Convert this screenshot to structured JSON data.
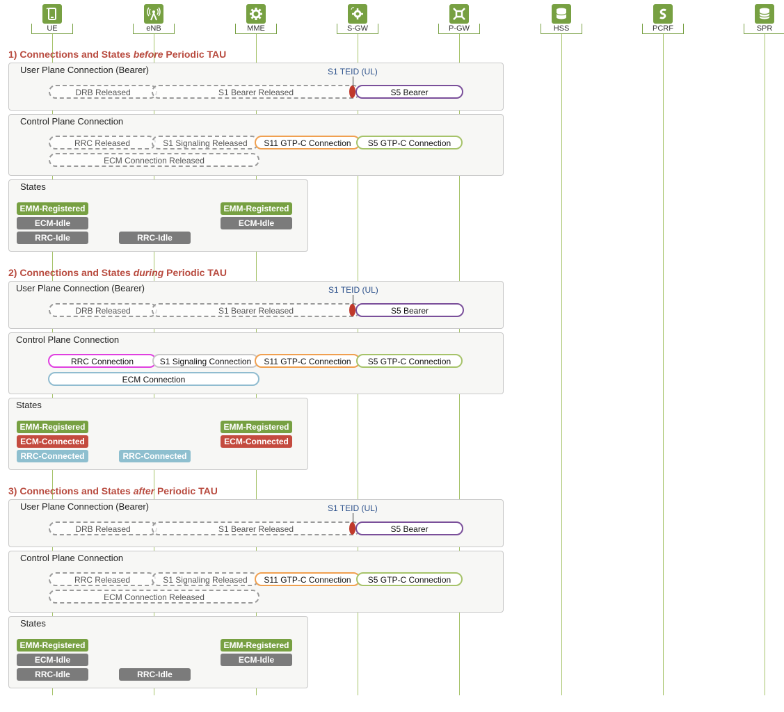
{
  "nodes": [
    {
      "label": "UE",
      "icon": "ue-phone-icon"
    },
    {
      "label": "eNB",
      "icon": "enb-antenna-icon"
    },
    {
      "label": "MME",
      "icon": "mme-gear-icon"
    },
    {
      "label": "S-GW",
      "icon": "sgw-gear-icon"
    },
    {
      "label": "P-GW",
      "icon": "pgw-gear-icon"
    },
    {
      "label": "HSS",
      "icon": "hss-database-icon"
    },
    {
      "label": "PCRF",
      "icon": "pcrf-s-icon"
    },
    {
      "label": "SPR",
      "icon": "spr-database-icon"
    }
  ],
  "sections": [
    {
      "number": "1) Connections and States ",
      "emph": "before",
      "rest": " Periodic TAU",
      "user_plane_title": "User Plane Connection (Bearer)",
      "teid": "S1 TEID (UL)",
      "drb": "DRB Released",
      "s1_bearer": "S1 Bearer Released",
      "s5_bearer": "S5 Bearer",
      "control_title": "Control Plane Connection",
      "rrc": "RRC  Released",
      "s1_sig": "S1 Signaling Released",
      "s11": "S11 GTP-C Connection",
      "s5c": "S5 GTP-C Connection",
      "ecm": "ECM Connection Released",
      "states_title": "States",
      "ue_emm": "EMM-Registered",
      "ue_ecm": "ECM-Idle",
      "ue_rrc": "RRC-Idle",
      "enb_rrc": "RRC-Idle",
      "mme_emm": "EMM-Registered",
      "mme_ecm": "ECM-Idle"
    },
    {
      "number": "2) Connections and States ",
      "emph": "during",
      "rest": " Periodic TAU",
      "user_plane_title": "User Plane Connection (Bearer)",
      "teid": "S1 TEID (UL)",
      "drb": "DRB Released",
      "s1_bearer": "S1 Bearer Released",
      "s5_bearer": "S5 Bearer",
      "control_title": "Control Plane Connection",
      "rrc": "RRC Connection",
      "s1_sig": "S1 Signaling Connection",
      "s11": "S11 GTP-C Connection",
      "s5c": "S5 GTP-C Connection",
      "ecm": "ECM Connection",
      "states_title": "States",
      "ue_emm": "EMM-Registered",
      "ue_ecm": "ECM-Connected",
      "ue_rrc": "RRC-Connected",
      "enb_rrc": "RRC-Connected",
      "mme_emm": "EMM-Registered",
      "mme_ecm": "ECM-Connected"
    },
    {
      "number": "3) Connections and States ",
      "emph": "after",
      "rest": " Periodic TAU",
      "user_plane_title": "User Plane Connection (Bearer)",
      "teid": "S1 TEID (UL)",
      "drb": "DRB Released",
      "s1_bearer": "S1 Bearer Released",
      "s5_bearer": "S5 Bearer",
      "control_title": "Control Plane Connection",
      "rrc": "RRC  Released",
      "s1_sig": "S1 Signaling Released",
      "s11": "S11 GTP-C Connection",
      "s5c": "S5 GTP-C Connection",
      "ecm": "ECM Connection Released",
      "states_title": "States",
      "ue_emm": "EMM-Registered",
      "ue_ecm": "ECM-Idle",
      "ue_rrc": "RRC-Idle",
      "enb_rrc": "RRC-Idle",
      "mme_emm": "EMM-Registered",
      "mme_ecm": "ECM-Idle"
    }
  ],
  "colors": {
    "node_green": "#77a042",
    "title_red": "#b84a3e",
    "s5_bearer_purple": "#7a4f9a",
    "s11_orange": "#f0a050",
    "s5c_green": "#a6c36a",
    "rrc_magenta": "#e040e0",
    "ecm_blue": "#90bcd0",
    "teid_red": "#c0392b",
    "idle_grey": "#7b7b7b",
    "connected_red": "#c44b3f"
  }
}
